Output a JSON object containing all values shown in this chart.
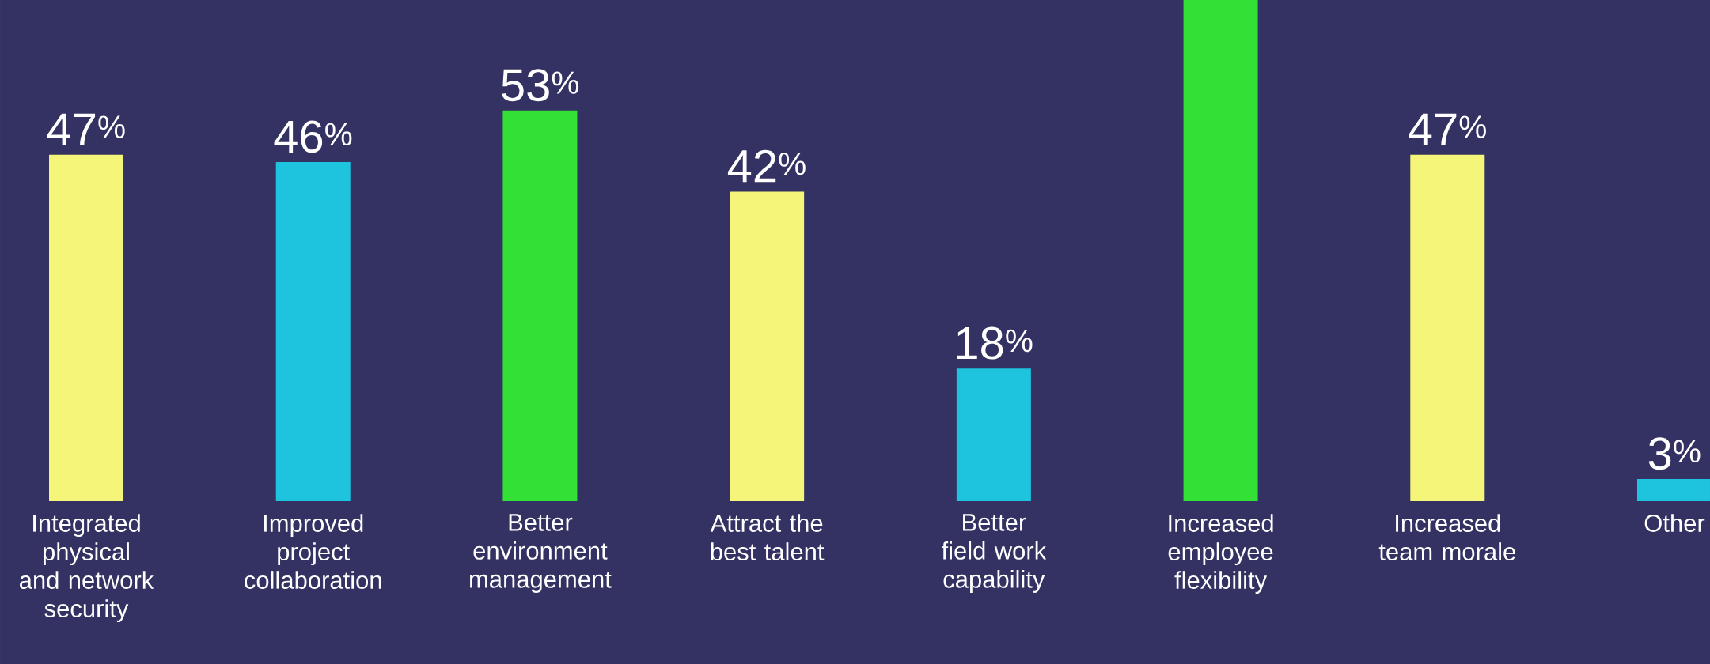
{
  "chart_data": {
    "type": "bar",
    "categories": [
      "Integrated physical and network security",
      "Improved project collaboration",
      "Better environment management",
      "Attract the best talent",
      "Better field work capability",
      "Increased employee flexibility",
      "Increased team morale",
      "Other"
    ],
    "values": [
      47,
      46,
      53,
      42,
      18,
      68,
      47,
      3
    ],
    "colors": [
      "#f5f57a",
      "#1ec3de",
      "#33e035",
      "#f5f57a",
      "#1ec3de",
      "#33e035",
      "#f5f57a",
      "#1ec3de"
    ],
    "value_labels": [
      "47$^{%}$",
      "46$^{%}$",
      "53$^{%}$",
      "42$^{%}$",
      "18$^{%}$",
      null,
      "47$^{%}$",
      "3$^{%}$"
    ]
  }
}
